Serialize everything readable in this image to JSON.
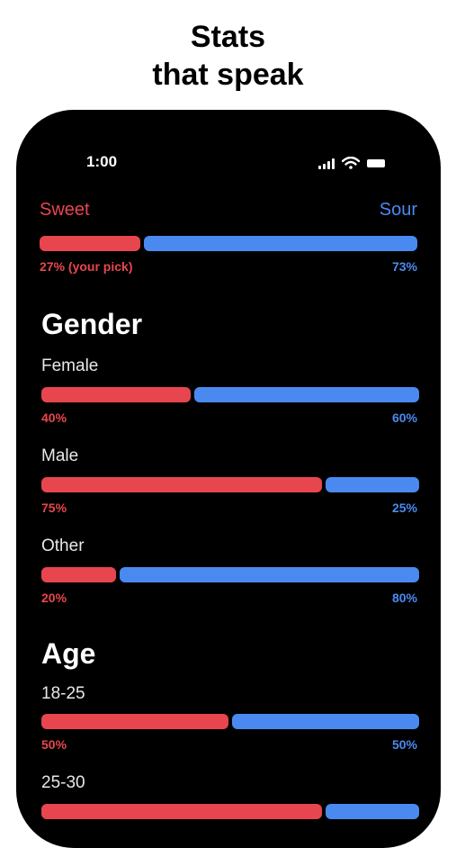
{
  "headline": {
    "line1": "Stats",
    "line2": "that speak"
  },
  "status_bar": {
    "time": "1:00"
  },
  "overall": {
    "left_label": "Sweet",
    "right_label": "Sour",
    "sweet_pct": 27,
    "left_pct_text": "27% (your pick)",
    "right_pct_text": "73%"
  },
  "gender": {
    "title": "Gender",
    "rows": [
      {
        "label": "Female",
        "sweet_pct": 40,
        "left_text": "40%",
        "right_text": "60%"
      },
      {
        "label": "Male",
        "sweet_pct": 75,
        "left_text": "75%",
        "right_text": "25%"
      },
      {
        "label": "Other",
        "sweet_pct": 20,
        "left_text": "20%",
        "right_text": "80%"
      }
    ]
  },
  "age": {
    "title": "Age",
    "rows": [
      {
        "label": "18-25",
        "sweet_pct": 50,
        "left_text": "50%",
        "right_text": "50%"
      },
      {
        "label": "25-30",
        "sweet_pct": 75
      }
    ]
  },
  "colors": {
    "sweet": "#e8464f",
    "sour": "#4a8af0",
    "background": "#000000"
  }
}
